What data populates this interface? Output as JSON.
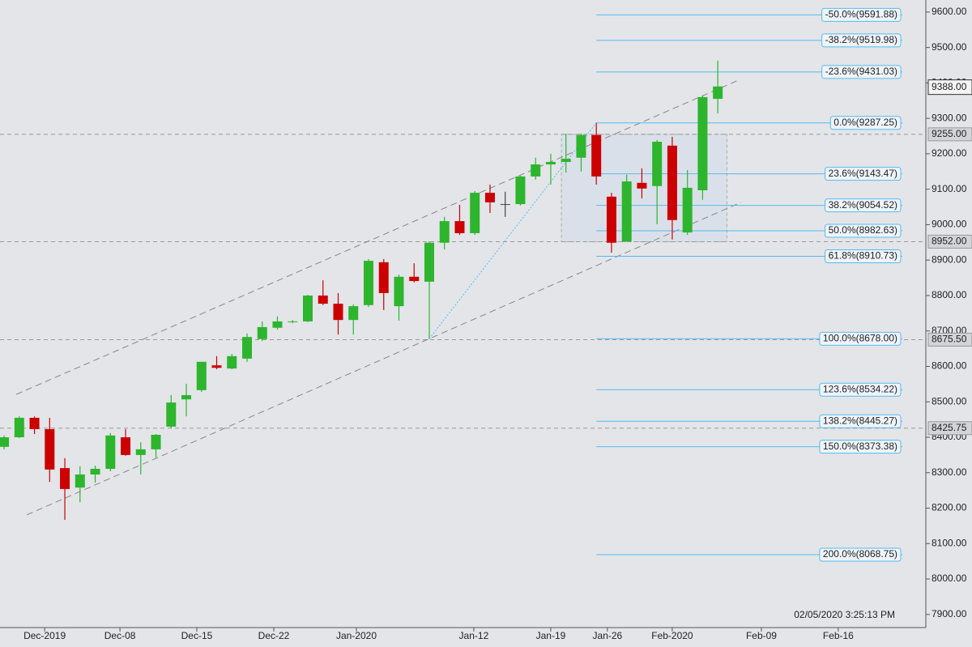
{
  "chart_data": {
    "type": "candlestick",
    "xlim": [
      -0.27,
      60.7
    ],
    "ylim": [
      7863,
      9634
    ],
    "xticks": [
      {
        "value": 2.67,
        "label": "Dec-2019"
      },
      {
        "value": 7.63,
        "label": "Dec-08"
      },
      {
        "value": 12.69,
        "label": "Dec-15"
      },
      {
        "value": 17.76,
        "label": "Dec-22"
      },
      {
        "value": 23.2,
        "label": "Jan-2020"
      },
      {
        "value": 30.93,
        "label": "Jan-12"
      },
      {
        "value": 36,
        "label": "Jan-19"
      },
      {
        "value": 39.73,
        "label": "Jan-26"
      },
      {
        "value": 44,
        "label": "Feb-2020"
      },
      {
        "value": 49.87,
        "label": "Feb-09"
      },
      {
        "value": 54.93,
        "label": "Feb-16"
      }
    ],
    "yticks": [
      {
        "value": 9600,
        "label": "9600.00"
      },
      {
        "value": 9500,
        "label": "9500.00"
      },
      {
        "value": 9400,
        "label": "9400.00"
      },
      {
        "value": 9300,
        "label": "9300.00"
      },
      {
        "value": 9200,
        "label": "9200.00"
      },
      {
        "value": 9100,
        "label": "9100.00"
      },
      {
        "value": 9000,
        "label": "9000.00"
      },
      {
        "value": 8900,
        "label": "8900.00"
      },
      {
        "value": 8800,
        "label": "8800.00"
      },
      {
        "value": 8700,
        "label": "8700.00"
      },
      {
        "value": 8600,
        "label": "8600.00"
      },
      {
        "value": 8500,
        "label": "8500.00"
      },
      {
        "value": 8400,
        "label": "8400.00"
      },
      {
        "value": 8300,
        "label": "8300.00"
      },
      {
        "value": 8200,
        "label": "8200.00"
      },
      {
        "value": 8100,
        "label": "8100.00"
      },
      {
        "value": 8000,
        "label": "8000.00"
      },
      {
        "value": 7900,
        "label": "7900.00"
      }
    ],
    "open": [
      8373,
      8400,
      8455,
      8423,
      8313,
      8258,
      8295,
      8311,
      8400,
      8350,
      8366,
      8430,
      8507,
      8533,
      8603,
      8594,
      8622,
      8677,
      8709,
      8725,
      8727,
      8800,
      8777,
      8731,
      8773,
      8894,
      8770,
      8853,
      8839,
      8949,
      9010,
      8976,
      9090,
      9058,
      9058,
      9136,
      9170,
      9177,
      9189,
      9253,
      9079,
      8952,
      9118,
      9109,
      9223,
      8978,
      9097,
      9355
    ],
    "high": [
      8405,
      8459,
      8459,
      8455,
      8341,
      8318,
      8320,
      8412,
      8423,
      8386,
      8409,
      8519,
      8551,
      8613,
      8629,
      8635,
      8693,
      8727,
      8741,
      8731,
      8802,
      8843,
      8807,
      8775,
      8903,
      8903,
      8859,
      8891,
      8953,
      9022,
      9056,
      9095,
      9113,
      9093,
      9138,
      9189,
      9200,
      9257,
      9257,
      9287.25,
      9090,
      9141,
      9159,
      9239,
      9248,
      9154,
      9365,
      9463
    ],
    "low": [
      8366,
      8398,
      8409,
      8274,
      8167,
      8217,
      8272,
      8304,
      8348,
      8295,
      8343,
      8425,
      8459,
      8528,
      8592,
      8592,
      8613,
      8672,
      8704,
      8722,
      8725,
      8773,
      8690,
      8690,
      8768,
      8759,
      8729,
      8837,
      8678,
      8930,
      8971,
      8971,
      9033,
      9022,
      9054,
      9127,
      9113,
      9147,
      9150,
      9113,
      8921,
      8952,
      9074,
      9001,
      8958,
      8971,
      9070,
      9314
    ],
    "close": [
      8400,
      8455,
      8423,
      8309,
      8254,
      8295,
      8311,
      8405,
      8350,
      8366,
      8407,
      8498,
      8519,
      8613,
      8596,
      8629,
      8683,
      8711,
      8727,
      8727,
      8800,
      8777,
      8731,
      8770,
      8898,
      8807,
      8853,
      8841,
      8949,
      9010,
      8976,
      9090,
      9063,
      9058,
      9136,
      9170,
      9177,
      9186,
      9253,
      9136,
      8949,
      9122,
      9102,
      9234,
      9013,
      9104,
      9360,
      9390
    ],
    "colors": {
      "up": "#2db52d",
      "down": "#cc0000",
      "flat": "#444444",
      "fib": "#55bbee",
      "trend": "#888888",
      "zone": "#d3dcea"
    },
    "fib_start": 39,
    "fib_levels": [
      {
        "value": 9591.88,
        "label": "-50.0%(9591.88)"
      },
      {
        "value": 9519.98,
        "label": "-38.2%(9519.98)"
      },
      {
        "value": 9431.03,
        "label": "-23.6%(9431.03)"
      },
      {
        "value": 9287.25,
        "label": "0.0%(9287.25)"
      },
      {
        "value": 9143.47,
        "label": "23.6%(9143.47)"
      },
      {
        "value": 9054.52,
        "label": "38.2%(9054.52)"
      },
      {
        "value": 8982.63,
        "label": "50.0%(8982.63)"
      },
      {
        "value": 8910.73,
        "label": "61.8%(8910.73)"
      },
      {
        "value": 8678.0,
        "label": "100.0%(8678.00)"
      },
      {
        "value": 8534.22,
        "label": "123.6%(8534.22)"
      },
      {
        "value": 8445.27,
        "label": "138.2%(8445.27)"
      },
      {
        "value": 8373.38,
        "label": "150.0%(8373.38)"
      },
      {
        "value": 8068.75,
        "label": "200.0%(8068.75)"
      }
    ],
    "price_lines": [
      {
        "value": 9255,
        "label": "9255.00"
      },
      {
        "value": 8952,
        "label": "8952.00"
      },
      {
        "value": 8675.5,
        "label": "8675.50"
      },
      {
        "value": 8425.75,
        "label": "8425.75"
      }
    ],
    "current_price": {
      "value": 9388,
      "label": "9388.00"
    },
    "trendlines": [
      {
        "x": [
          0.8,
          48.27
        ],
        "y": [
          8521,
          9406
        ],
        "style": "dash"
      },
      {
        "x": [
          1.49,
          48.53
        ],
        "y": [
          8181,
          9063
        ],
        "style": "dash"
      },
      {
        "x": [
          28,
          39
        ],
        "y": [
          8678,
          9287.25
        ],
        "style": "dot"
      }
    ],
    "zone": {
      "x": [
        36.7,
        47.6
      ],
      "y": [
        8952,
        9255
      ]
    },
    "timestamp": "02/05/2020 3:25:13 PM"
  }
}
